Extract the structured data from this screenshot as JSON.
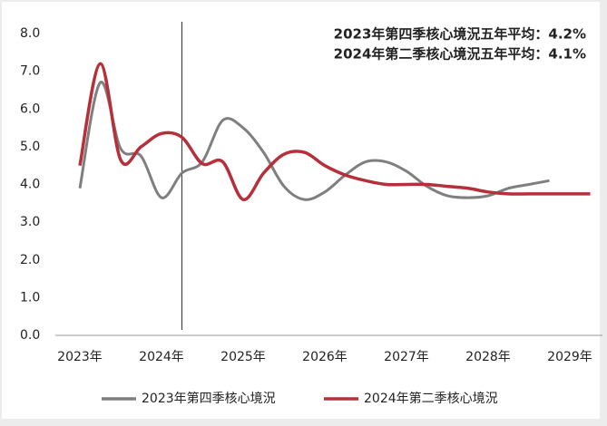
{
  "chart_data": {
    "type": "line",
    "annotations": [
      "2023年第四季核心境況五年平均：4.2%",
      "2024年第二季核心境況五年平均：4.1%"
    ],
    "series": [
      {
        "name": "2023年第四季核心境況",
        "color": "#7f7f7f",
        "x": [
          2023,
          2023.25,
          2023.5,
          2023.75,
          2024,
          2024.25,
          2024.5,
          2024.75,
          2025,
          2025.25,
          2025.5,
          2025.75,
          2026,
          2026.25,
          2026.5,
          2026.75,
          2027,
          2027.25,
          2027.5,
          2027.75,
          2028,
          2028.25,
          2028.5,
          2028.75
        ],
        "values": [
          3.9,
          6.7,
          4.95,
          4.75,
          3.65,
          4.3,
          4.6,
          5.7,
          5.5,
          4.85,
          3.95,
          3.6,
          3.8,
          4.25,
          4.6,
          4.6,
          4.35,
          3.95,
          3.7,
          3.65,
          3.7,
          3.9,
          4.0,
          4.1
        ]
      },
      {
        "name": "2024年第二季核心境況",
        "color": "#b5303a",
        "x": [
          2023,
          2023.25,
          2023.5,
          2023.75,
          2024,
          2024.25,
          2024.5,
          2024.75,
          2025,
          2025.25,
          2025.5,
          2025.75,
          2026,
          2026.25,
          2026.5,
          2026.75,
          2027,
          2027.25,
          2027.5,
          2027.75,
          2028,
          2028.25,
          2028.5,
          2028.75,
          2029,
          2029.25
        ],
        "values": [
          4.5,
          7.2,
          4.65,
          5.0,
          5.35,
          5.25,
          4.55,
          4.6,
          3.6,
          4.3,
          4.8,
          4.85,
          4.5,
          4.25,
          4.1,
          4.0,
          4.0,
          4.0,
          3.95,
          3.9,
          3.8,
          3.75,
          3.75,
          3.75,
          3.75,
          3.75
        ]
      }
    ],
    "vline": 2024.25,
    "xlim": [
      2022.7,
      2029.4
    ],
    "xticks": [
      {
        "value": 2023,
        "label": "2023年"
      },
      {
        "value": 2024,
        "label": "2024年"
      },
      {
        "value": 2025,
        "label": "2025年"
      },
      {
        "value": 2026,
        "label": "2026年"
      },
      {
        "value": 2027,
        "label": "2027年"
      },
      {
        "value": 2028,
        "label": "2028年"
      },
      {
        "value": 2029,
        "label": "2029年"
      }
    ],
    "ylim": [
      0,
      8
    ],
    "yticks": [
      {
        "value": 0,
        "label": "0.0"
      },
      {
        "value": 1,
        "label": "1.0"
      },
      {
        "value": 2,
        "label": "2.0"
      },
      {
        "value": 3,
        "label": "3.0"
      },
      {
        "value": 4,
        "label": "4.0"
      },
      {
        "value": 5,
        "label": "5.0"
      },
      {
        "value": 6,
        "label": "6.0"
      },
      {
        "value": 7,
        "label": "7.0"
      },
      {
        "value": 8,
        "label": "8.0"
      }
    ],
    "legend": "bottom"
  }
}
